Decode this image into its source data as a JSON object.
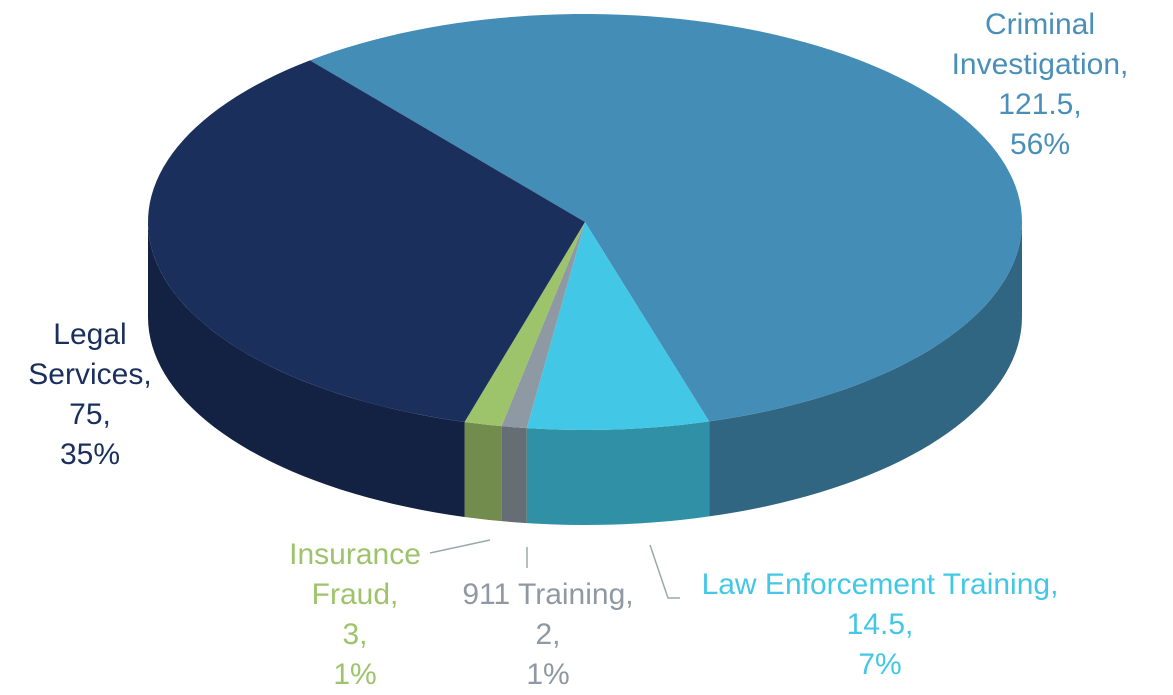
{
  "chart_data": {
    "type": "pie",
    "categories": [
      "Criminal Investigation",
      "Law Enforcement Training",
      "911 Training",
      "Insurance Fraud",
      "Legal Services"
    ],
    "values": [
      121.5,
      14.5,
      2,
      3,
      75
    ],
    "percents": [
      56,
      7,
      1,
      1,
      35
    ],
    "percent_labels": [
      "56%",
      "7%",
      "1%",
      "1%",
      "35%"
    ],
    "label_separator": ",",
    "colors": [
      "#448db6",
      "#42c8e6",
      "#8e99a3",
      "#9dc36b",
      "#1b2f5d"
    ]
  }
}
